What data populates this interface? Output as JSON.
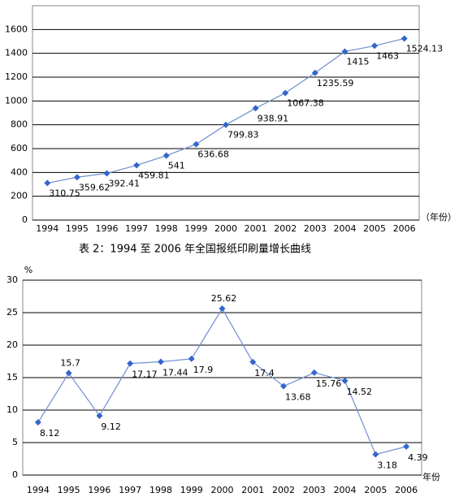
{
  "chart_data": [
    {
      "type": "line",
      "title": "表 2：1994 至 2006 年全国报纸印刷量增长曲线",
      "xlabel": "（年份）",
      "categories": [
        "1994",
        "1995",
        "1996",
        "1997",
        "1998",
        "1999",
        "2000",
        "2001",
        "2002",
        "2003",
        "2004",
        "2005",
        "2006"
      ],
      "values": [
        310.75,
        359.62,
        392.41,
        459.81,
        541,
        636.68,
        799.83,
        938.91,
        1067.38,
        1235.59,
        1415,
        1463,
        1524.13
      ],
      "color": "#3366cc",
      "ylim": [
        0,
        1800
      ],
      "yticks": [
        0,
        200,
        400,
        600,
        800,
        1000,
        1200,
        1400,
        1600
      ],
      "grid": true
    },
    {
      "type": "line",
      "ylabel": "%",
      "xlabel": "年份",
      "categories": [
        "1994",
        "1995",
        "1996",
        "1997",
        "1998",
        "1999",
        "2000",
        "2001",
        "2002",
        "2003",
        "2004",
        "2005",
        "2006"
      ],
      "values": [
        8.12,
        15.7,
        9.12,
        17.17,
        17.44,
        17.9,
        25.62,
        17.4,
        13.68,
        15.76,
        14.52,
        3.18,
        4.39
      ],
      "color": "#3366cc",
      "ylim": [
        0,
        30
      ],
      "yticks": [
        0,
        5,
        10,
        15,
        20,
        25,
        30
      ],
      "grid": true
    }
  ]
}
